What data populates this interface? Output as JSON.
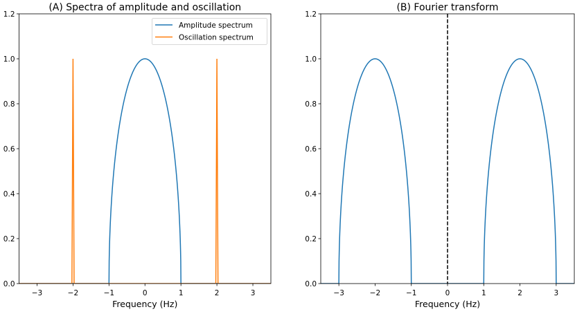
{
  "chart_data": [
    {
      "type": "line",
      "title": "(A) Spectra of amplitude and oscillation",
      "xlabel": "Frequency (Hz)",
      "ylabel": "",
      "xlim": [
        -3.5,
        3.5
      ],
      "ylim": [
        0,
        1.2
      ],
      "xticks": [
        -3,
        -2,
        -1,
        0,
        1,
        2,
        3
      ],
      "xtick_labels": [
        "−3",
        "−2",
        "−1",
        "0",
        "1",
        "2",
        "3"
      ],
      "yticks": [
        0,
        0.2,
        0.4,
        0.6,
        0.8,
        1.0,
        1.2
      ],
      "ytick_labels": [
        "0.0",
        "0.2",
        "0.4",
        "0.6",
        "0.8",
        "1.0",
        "1.2"
      ],
      "grid": false,
      "legend": {
        "placement": "top-right",
        "entries": [
          "Amplitude spectrum",
          "Oscillation spectrum"
        ]
      },
      "series": [
        {
          "name": "Amplitude spectrum",
          "color": "#1f77b4",
          "shape": "half-ellipse",
          "center": 0,
          "halfwidth": 1,
          "peak": 1.0
        },
        {
          "name": "Oscillation spectrum",
          "color": "#ff7f0e",
          "shape": "spikes",
          "centers": [
            -2,
            2
          ],
          "halfwidth": 0.03,
          "peak": 1.0
        }
      ]
    },
    {
      "type": "line",
      "title": "(B) Fourier transform",
      "xlabel": "Frequency (Hz)",
      "ylabel": "",
      "xlim": [
        -3.5,
        3.5
      ],
      "ylim": [
        0,
        1.2
      ],
      "xticks": [
        -3,
        -2,
        -1,
        0,
        1,
        2,
        3
      ],
      "xtick_labels": [
        "−3",
        "−2",
        "−1",
        "0",
        "1",
        "2",
        "3"
      ],
      "yticks": [
        0,
        0.2,
        0.4,
        0.6,
        0.8,
        1.0,
        1.2
      ],
      "ytick_labels": [
        "0.0",
        "0.2",
        "0.4",
        "0.6",
        "0.8",
        "1.0",
        "1.2"
      ],
      "grid": false,
      "vline": {
        "x": 0,
        "style": "dashed",
        "color": "#000000"
      },
      "series": [
        {
          "color": "#1f77b4",
          "shape": "half-ellipse",
          "centers": [
            -2,
            2
          ],
          "halfwidth": 1,
          "peak": 1.0
        }
      ]
    }
  ]
}
